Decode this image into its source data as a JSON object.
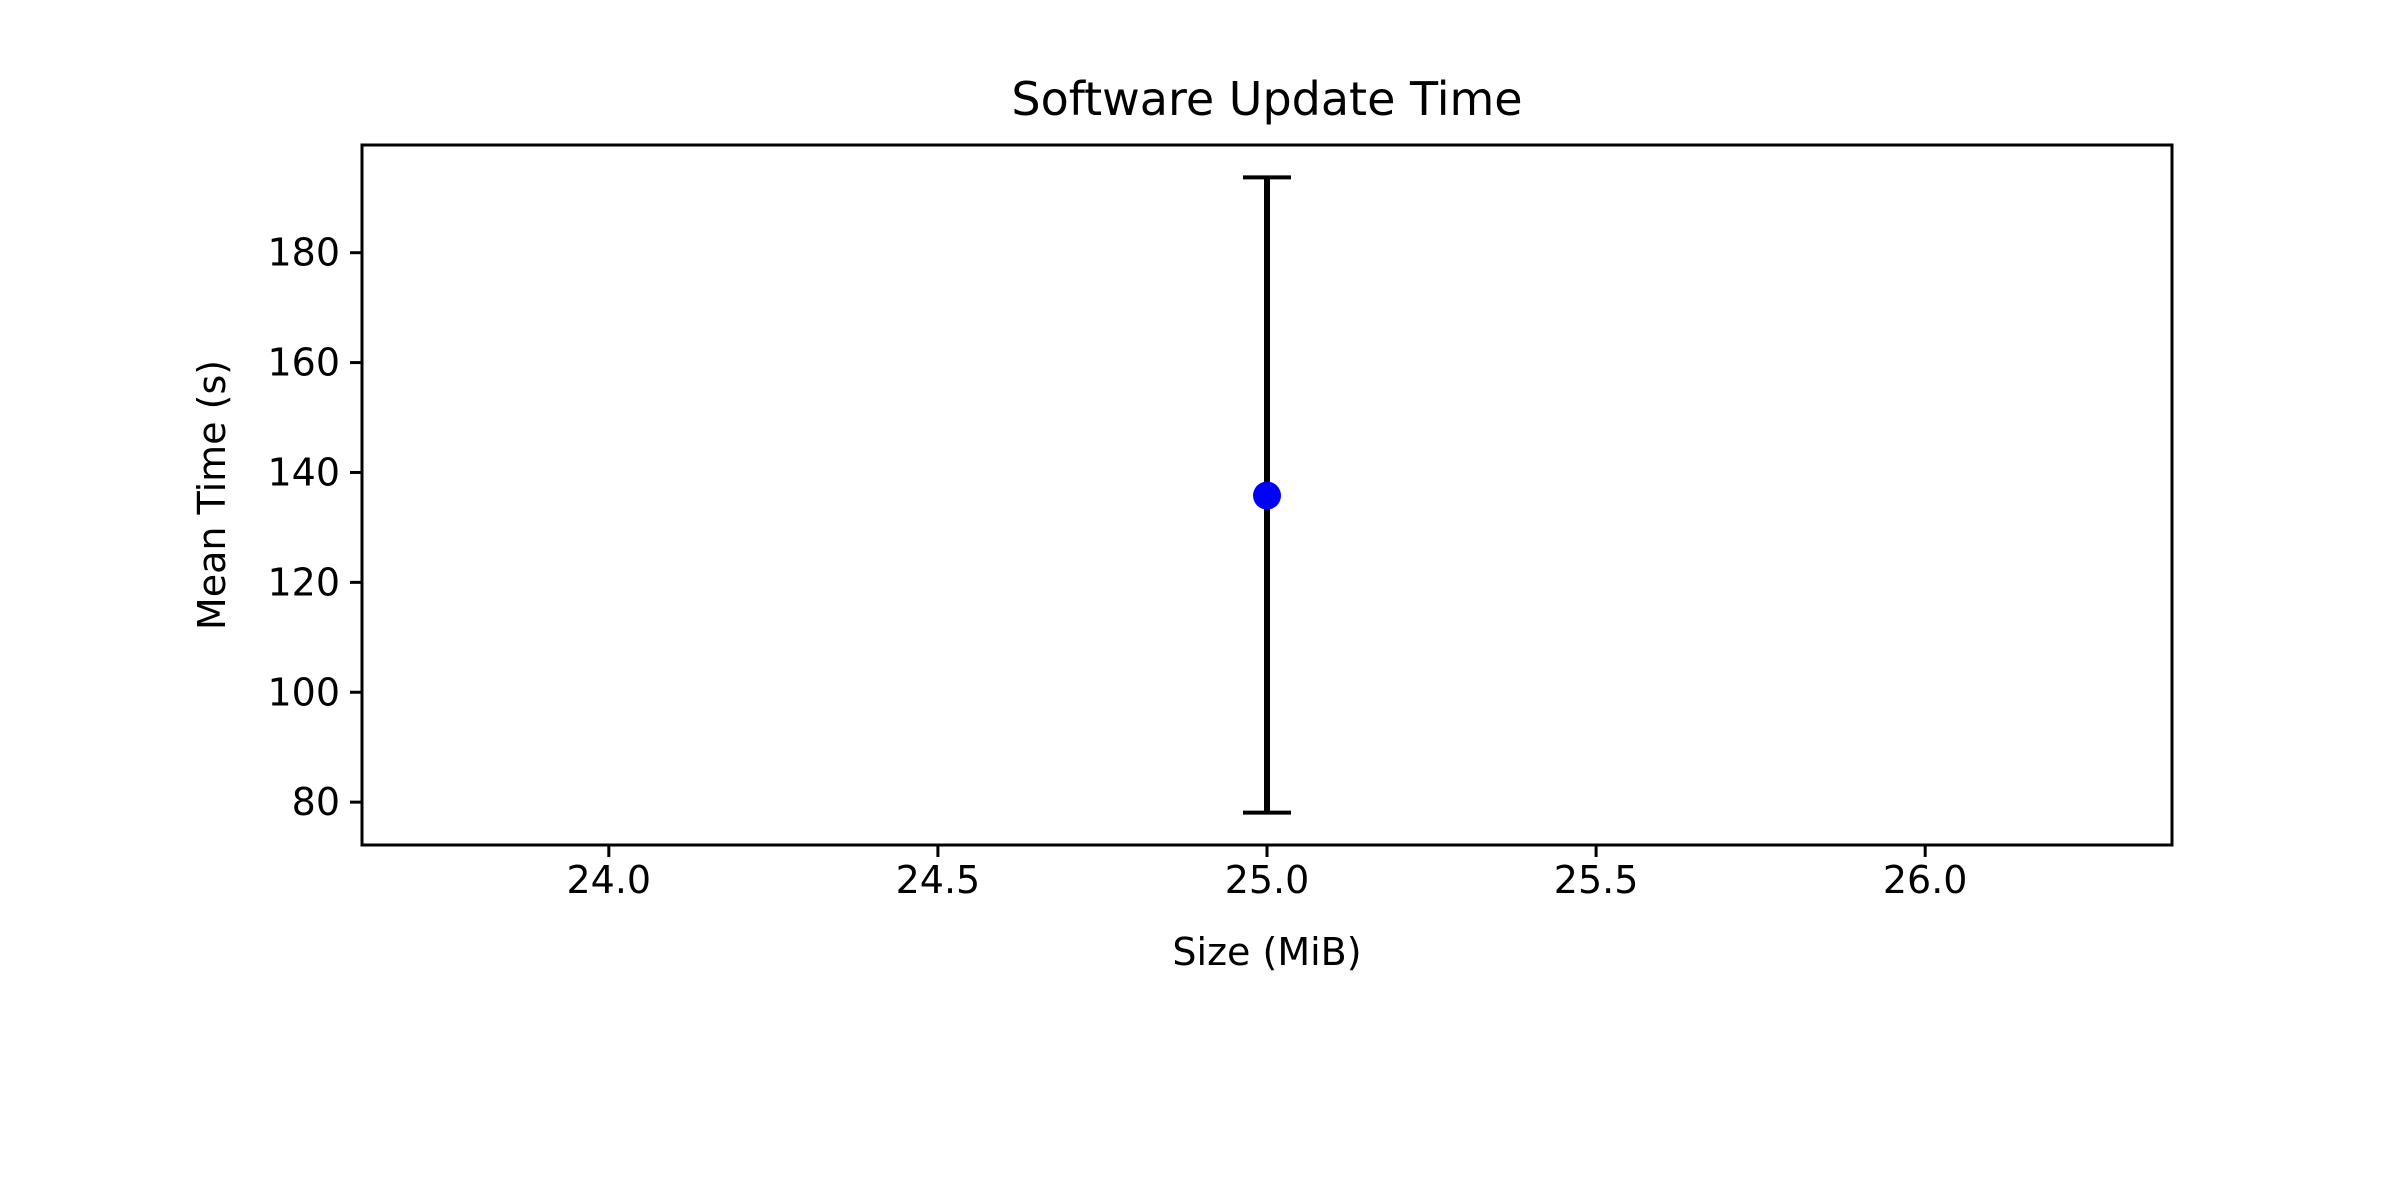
{
  "chart_data": {
    "type": "scatter",
    "title": "Software Update Time",
    "xlabel": "Size (MiB)",
    "ylabel": "Mean Time (s)",
    "xlim": [
      23.625,
      26.375
    ],
    "ylim": [
      72.2,
      199.6
    ],
    "x_ticks": [
      24.0,
      24.5,
      25.0,
      25.5,
      26.0
    ],
    "x_tick_labels": [
      "24.0",
      "24.5",
      "25.0",
      "25.5",
      "26.0"
    ],
    "y_ticks": [
      80,
      100,
      120,
      140,
      160,
      180
    ],
    "y_tick_labels": [
      "80",
      "100",
      "120",
      "140",
      "160",
      "180"
    ],
    "grid": false,
    "legend": "none",
    "points": [
      {
        "x": 25.0,
        "y": 135.8,
        "yerr_low": 78.1,
        "yerr_high": 193.7
      }
    ],
    "marker_color": "#0000ff",
    "errorbar_color": "#000000"
  }
}
